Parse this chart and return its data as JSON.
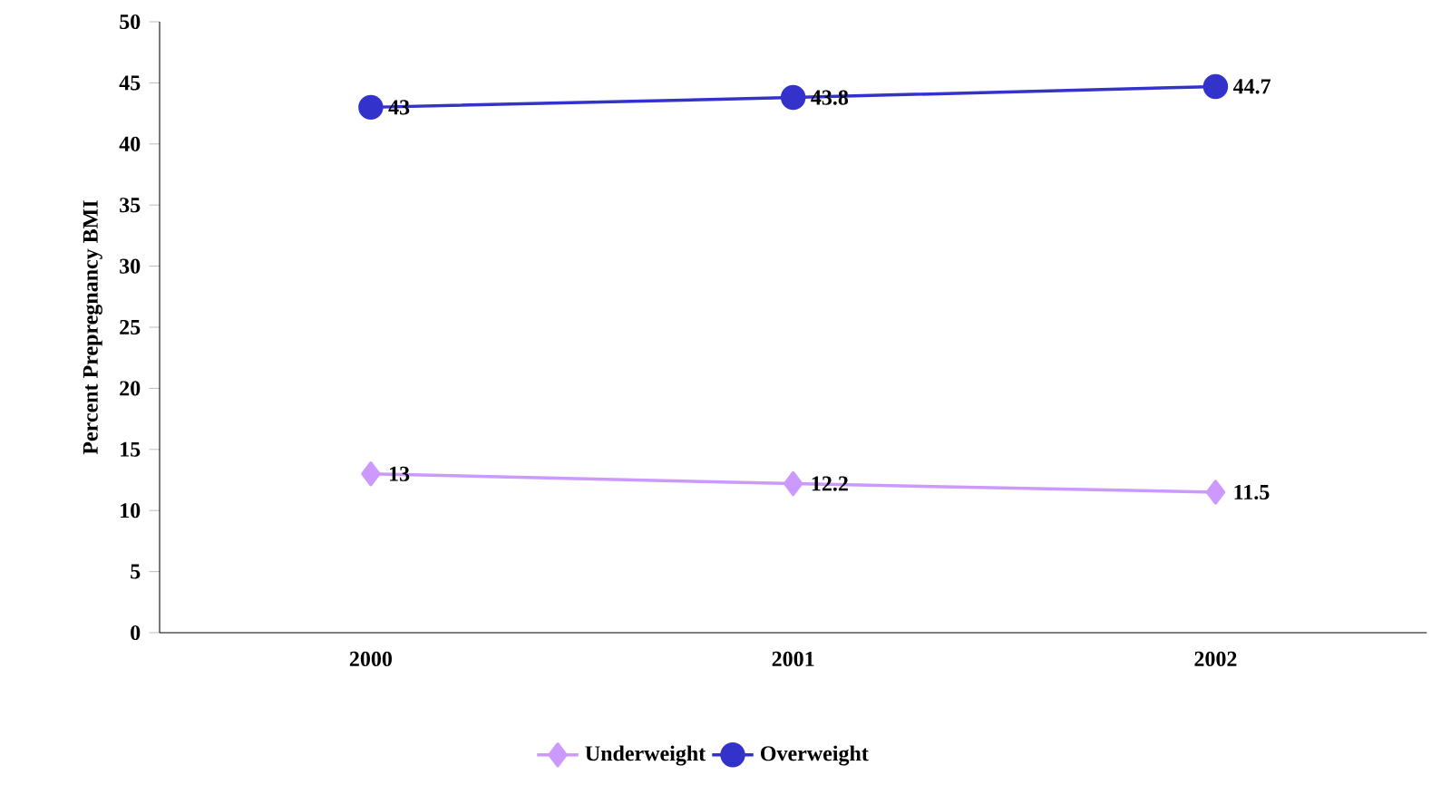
{
  "chart_data": {
    "type": "line",
    "ylabel": "Percent Prepregnancy BMI",
    "categories": [
      "2000",
      "2001",
      "2002"
    ],
    "series": [
      {
        "name": "Underweight",
        "color": "#cc99ff",
        "marker": "diamond",
        "values": [
          13,
          12.2,
          11.5
        ]
      },
      {
        "name": "Overweight",
        "color": "#3333cc",
        "marker": "circle",
        "values": [
          43,
          43.8,
          44.7
        ]
      }
    ],
    "ylim": [
      0,
      50
    ],
    "yticks": [
      0,
      5,
      10,
      15,
      20,
      25,
      30,
      35,
      40,
      45,
      50
    ],
    "data_labels": true,
    "legend": "bottom",
    "grid": false
  }
}
